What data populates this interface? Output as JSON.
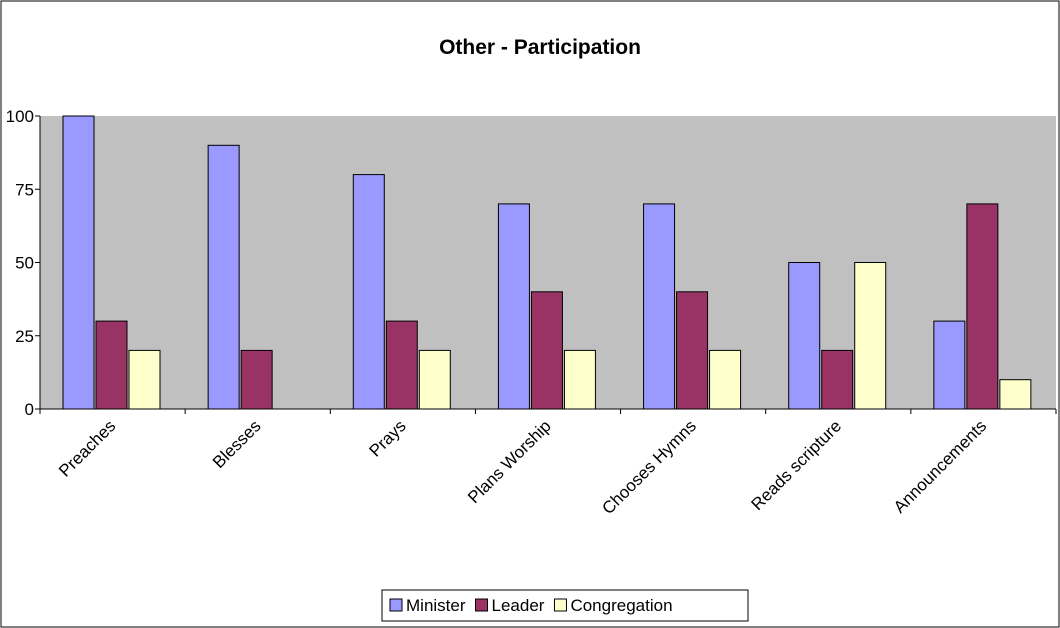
{
  "chart_data": {
    "type": "bar",
    "title": "Other - Participation",
    "xlabel": "",
    "ylabel": "",
    "ylim": [
      0,
      100
    ],
    "yticks": [
      0,
      25,
      50,
      75,
      100
    ],
    "grid": false,
    "legend_position": "bottom",
    "plot_background": "#c0c0c0",
    "categories": [
      "Preaches",
      "Blesses",
      "Prays",
      "Plans Worship",
      "Chooses Hymns",
      "Reads scripture",
      "Announcements"
    ],
    "series": [
      {
        "name": "Minister",
        "color": "#9999ff",
        "values": [
          100,
          90,
          80,
          70,
          70,
          50,
          30
        ]
      },
      {
        "name": "Leader",
        "color": "#993366",
        "values": [
          30,
          20,
          30,
          40,
          40,
          20,
          70
        ]
      },
      {
        "name": "Congregation",
        "color": "#ffffcc",
        "values": [
          20,
          0,
          20,
          20,
          20,
          50,
          10
        ]
      }
    ]
  }
}
